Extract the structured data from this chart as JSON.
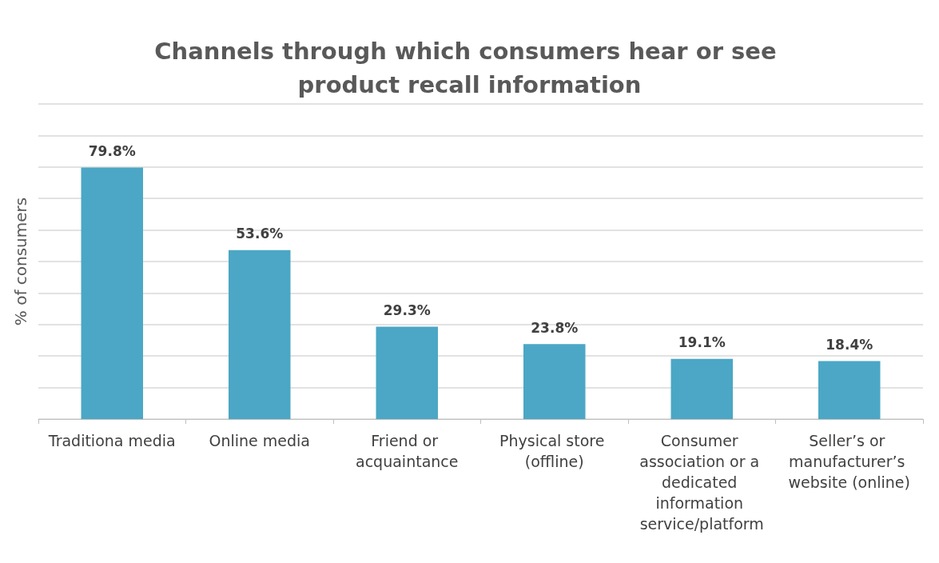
{
  "chart_data": {
    "type": "bar",
    "title": "Channels through which consumers hear or see product recall information",
    "ylabel": "% of consumers",
    "categories": [
      "Traditiona media",
      "Online media",
      "Friend or acquaintance",
      "Physical store (offline)",
      "Consumer association or a dedicated information service/platform",
      "Seller’s or manufacturer’s website (online)"
    ],
    "values": [
      79.8,
      53.6,
      29.3,
      23.8,
      19.1,
      18.4
    ],
    "value_labels": [
      "79.8%",
      "53.6%",
      "29.3%",
      "23.8%",
      "19.1%",
      "18.4%"
    ],
    "color": "#4ba7c5",
    "ylim": [
      0,
      100
    ],
    "yticks": [
      {
        "value": 0,
        "label": null
      },
      {
        "value": 10,
        "label": null
      },
      {
        "value": 20,
        "label": null
      },
      {
        "value": 30,
        "label": null
      },
      {
        "value": 40,
        "label": null
      },
      {
        "value": 50,
        "label": null
      },
      {
        "value": 60,
        "label": null
      },
      {
        "value": 70,
        "label": null
      },
      {
        "value": 80,
        "label": null
      },
      {
        "value": 90,
        "label": null
      },
      {
        "value": 100,
        "label": null
      }
    ],
    "grid": "y",
    "tick_labels": "x"
  }
}
